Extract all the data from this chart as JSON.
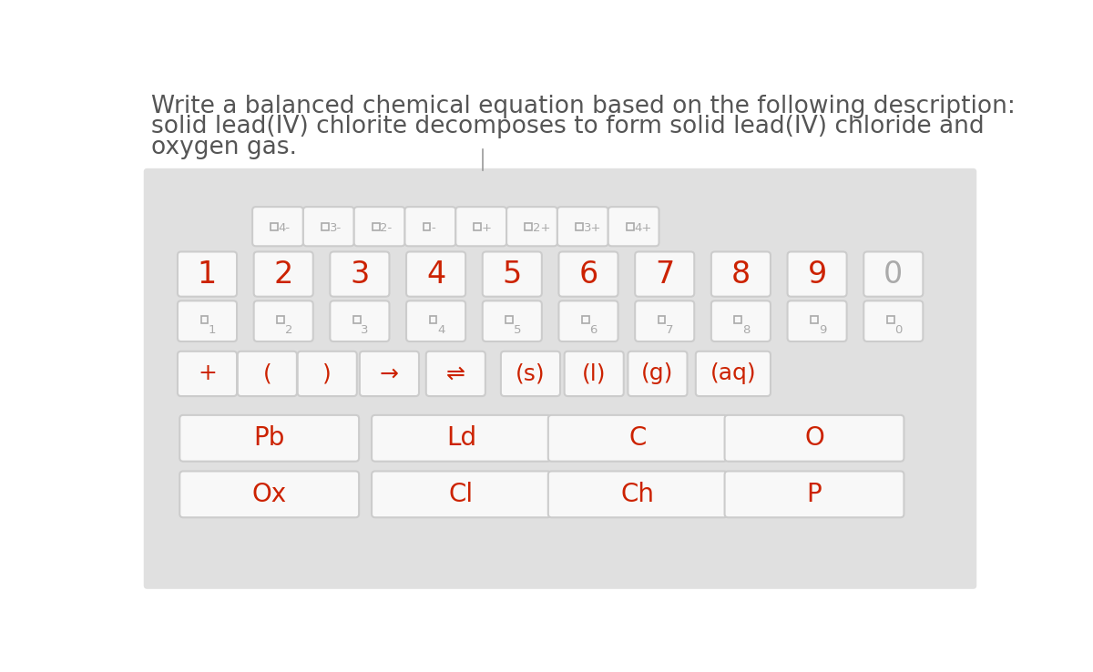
{
  "bg_color": "#e5e5e5",
  "white_bg": "#ffffff",
  "top_text_color": "#555555",
  "red_color": "#cc2200",
  "gray_color": "#aaaaaa",
  "title_line1": "Write a balanced chemical equation based on the following description:",
  "title_line2": "solid lead(IV) chlorite decomposes to form solid lead(IV) chloride and",
  "title_line3": "oxygen gas.",
  "keyboard_bg": "#e0e0e0",
  "key_bg": "#f8f8f8",
  "key_border": "#cccccc",
  "row1_keys": [
    "4-",
    "3-",
    "2-",
    "-",
    "+",
    "2+",
    "3+",
    "4+"
  ],
  "row2_keys": [
    "1",
    "2",
    "3",
    "4",
    "5",
    "6",
    "7",
    "8",
    "9",
    "0"
  ],
  "row3_subs": [
    "1",
    "2",
    "3",
    "4",
    "5",
    "6",
    "7",
    "8",
    "9",
    "0"
  ],
  "row4_keys": [
    "+",
    "(",
    ")",
    "→",
    "⇌",
    "(s)",
    "(l)",
    "(g)",
    "(aq)"
  ],
  "row5_keys": [
    "Pb",
    "Ld",
    "C",
    "O"
  ],
  "row6_keys": [
    "Ox",
    "Cl",
    "Ch",
    "P"
  ],
  "title_fontsize": 19,
  "num_fontsize": 24,
  "op_fontsize": 18,
  "elem_fontsize": 20
}
